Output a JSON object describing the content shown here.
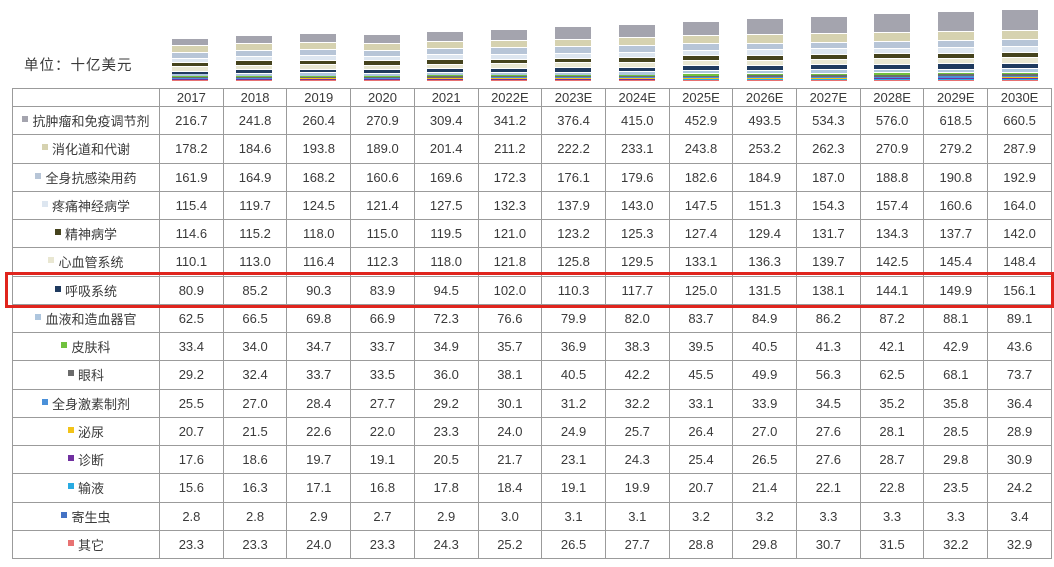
{
  "chart_data": {
    "type": "bar",
    "stacked": true,
    "unit_label": "单位：十亿美元",
    "legend_position": "table-row-labels",
    "grid": false,
    "categories": [
      "2017",
      "2018",
      "2019",
      "2020",
      "2021",
      "2022E",
      "2023E",
      "2024E",
      "2025E",
      "2026E",
      "2027E",
      "2028E",
      "2029E",
      "2030E"
    ],
    "series": [
      {
        "name": "抗肿瘤和免疫调节剂",
        "color": "#a4a4ae",
        "values": [
          216.7,
          241.8,
          260.4,
          270.9,
          309.4,
          341.2,
          376.4,
          415.0,
          452.9,
          493.5,
          534.3,
          576.0,
          618.5,
          660.5
        ]
      },
      {
        "name": "消化道和代谢",
        "color": "#d6d2b0",
        "values": [
          178.2,
          184.6,
          193.8,
          189.0,
          201.4,
          211.2,
          222.2,
          233.1,
          243.8,
          253.2,
          262.3,
          270.9,
          279.2,
          287.9
        ]
      },
      {
        "name": "全身抗感染用药",
        "color": "#b7c5d7",
        "values": [
          161.9,
          164.9,
          168.2,
          160.6,
          169.6,
          172.3,
          176.1,
          179.6,
          182.6,
          184.9,
          187.0,
          188.8,
          190.8,
          192.9
        ]
      },
      {
        "name": "疼痛神经病学",
        "color": "#dde6f0",
        "values": [
          115.4,
          119.7,
          124.5,
          121.4,
          127.5,
          132.3,
          137.9,
          143.0,
          147.5,
          151.3,
          154.3,
          157.4,
          160.6,
          164.0
        ]
      },
      {
        "name": "精神病学",
        "color": "#45431d",
        "values": [
          114.6,
          115.2,
          118.0,
          115.0,
          119.5,
          121.0,
          123.2,
          125.3,
          127.4,
          129.4,
          131.7,
          134.3,
          137.7,
          142.0
        ]
      },
      {
        "name": "心血管系统",
        "color": "#e9e7d2",
        "values": [
          110.1,
          113.0,
          116.4,
          112.3,
          118.0,
          121.8,
          125.8,
          129.5,
          133.1,
          136.3,
          139.7,
          142.5,
          145.4,
          148.4
        ]
      },
      {
        "name": "呼吸系统",
        "color": "#1f3a5f",
        "highlighted": true,
        "values": [
          80.9,
          85.2,
          90.3,
          83.9,
          94.5,
          102.0,
          110.3,
          117.7,
          125.0,
          131.5,
          138.1,
          144.1,
          149.9,
          156.1
        ]
      },
      {
        "name": "血液和造血器官",
        "color": "#aec6de",
        "values": [
          62.5,
          66.5,
          69.8,
          66.9,
          72.3,
          76.6,
          79.9,
          82.0,
          83.7,
          84.9,
          86.2,
          87.2,
          88.1,
          89.1
        ]
      },
      {
        "name": "皮肤科",
        "color": "#70c13e",
        "values": [
          33.4,
          34.0,
          34.7,
          33.7,
          34.9,
          35.7,
          36.9,
          38.3,
          39.5,
          40.5,
          41.3,
          42.1,
          42.9,
          43.6
        ]
      },
      {
        "name": "眼科",
        "color": "#6b6b6b",
        "values": [
          29.2,
          32.4,
          33.7,
          33.5,
          36.0,
          38.1,
          40.5,
          42.2,
          45.5,
          49.9,
          56.3,
          62.5,
          68.1,
          73.7
        ]
      },
      {
        "name": "全身激素制剂",
        "color": "#4a90d9",
        "values": [
          25.5,
          27.0,
          28.4,
          27.7,
          29.2,
          30.1,
          31.2,
          32.2,
          33.1,
          33.9,
          34.5,
          35.2,
          35.8,
          36.4
        ]
      },
      {
        "name": "泌尿",
        "color": "#f2c318",
        "values": [
          20.7,
          21.5,
          22.6,
          22.0,
          23.3,
          24.0,
          24.9,
          25.7,
          26.4,
          27.0,
          27.6,
          28.1,
          28.5,
          28.9
        ]
      },
      {
        "name": "诊断",
        "color": "#7030a0",
        "values": [
          17.6,
          18.6,
          19.7,
          19.1,
          20.5,
          21.7,
          23.1,
          24.3,
          25.4,
          26.5,
          27.6,
          28.7,
          29.8,
          30.9
        ]
      },
      {
        "name": "输液",
        "color": "#29abe2",
        "values": [
          15.6,
          16.3,
          17.1,
          16.8,
          17.8,
          18.4,
          19.1,
          19.9,
          20.7,
          21.4,
          22.1,
          22.8,
          23.5,
          24.2
        ]
      },
      {
        "name": "寄生虫",
        "color": "#4472c4",
        "values": [
          2.8,
          2.8,
          2.9,
          2.7,
          2.9,
          3.0,
          3.1,
          3.1,
          3.2,
          3.2,
          3.3,
          3.3,
          3.3,
          3.4
        ]
      },
      {
        "name": "其它",
        "color": "#e87272",
        "values": [
          23.3,
          23.3,
          24.0,
          23.3,
          24.3,
          25.2,
          26.5,
          27.7,
          28.8,
          29.8,
          30.7,
          31.5,
          32.2,
          32.9
        ]
      }
    ],
    "highlight": {
      "highlighted_series": "呼吸系统",
      "highlight_color": "#e0241d"
    }
  }
}
